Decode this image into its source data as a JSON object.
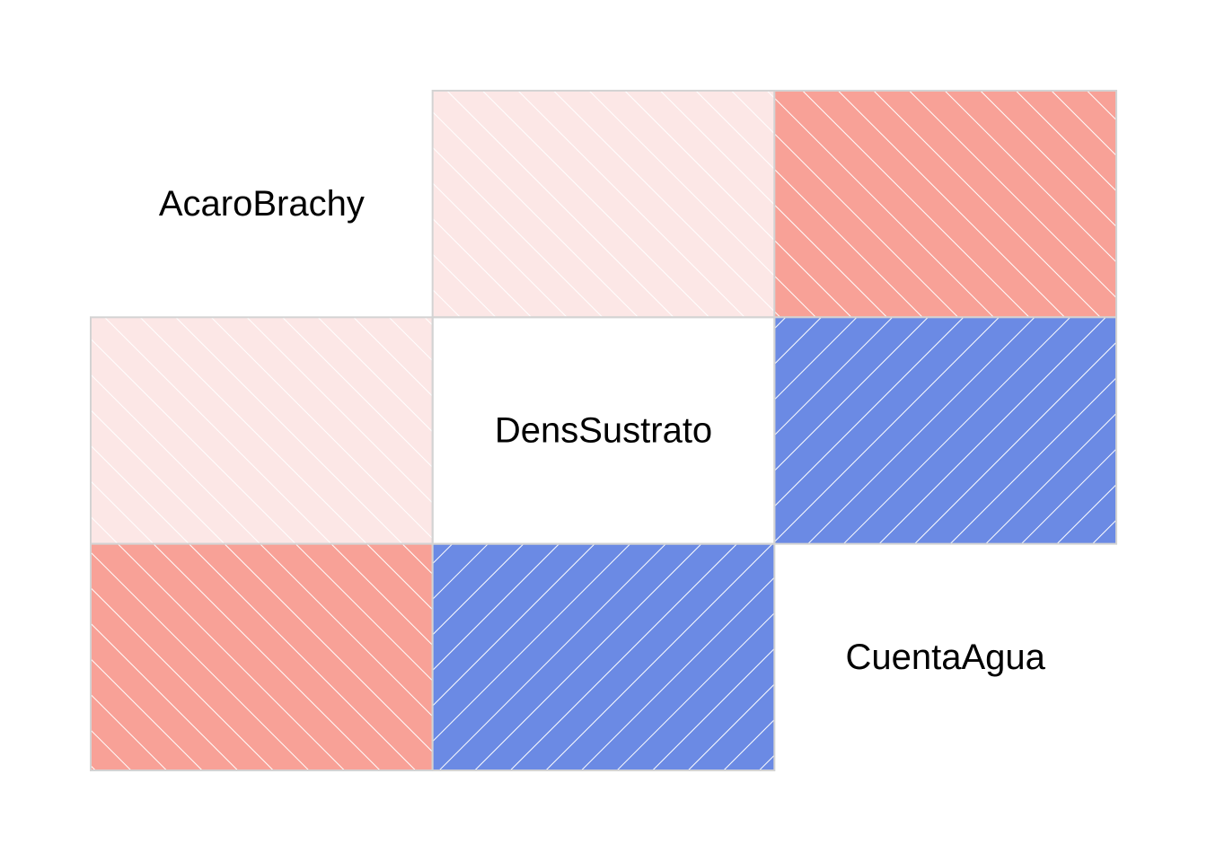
{
  "chart_data": {
    "type": "heatmap",
    "variables": [
      "AcaroBrachy",
      "DensSustrato",
      "CuentaAgua"
    ],
    "matrix": [
      [
        1.0,
        0.1,
        0.4
      ],
      [
        0.1,
        1.0,
        -0.6
      ],
      [
        0.4,
        -0.6,
        1.0
      ]
    ],
    "diagonal": "labels",
    "off_diagonal": "shade",
    "colors": {
      "positive": "#f8a197",
      "positive_light": "#fce7e6",
      "negative": "#6b8ae4",
      "hatch": "#ffffff",
      "border": "#d3d3d3"
    }
  }
}
